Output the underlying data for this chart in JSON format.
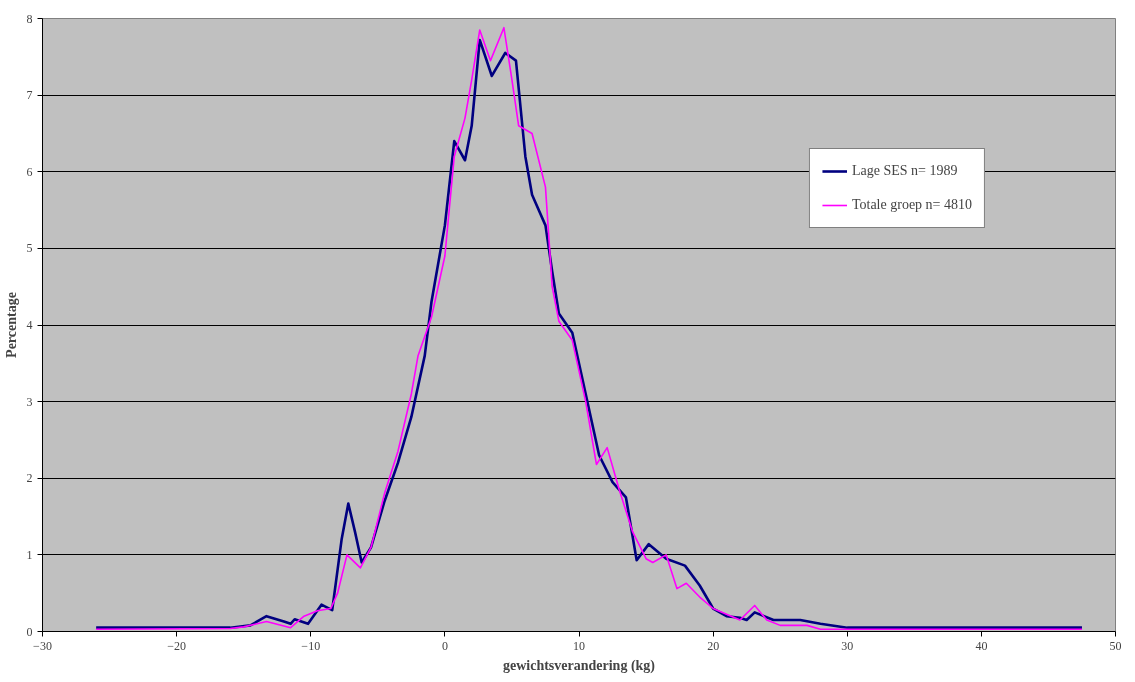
{
  "chart_data": {
    "type": "line",
    "xlabel": "gewichtsverandering (kg)",
    "ylabel": "Percentage",
    "xlim": [
      -30,
      50
    ],
    "xticks": [
      -30,
      -20,
      -10,
      0,
      10,
      20,
      30,
      40,
      50
    ],
    "ylim": [
      0,
      8
    ],
    "yticks": [
      0,
      1,
      2,
      3,
      4,
      5,
      6,
      7,
      8
    ],
    "grid": "y",
    "legend": "top right",
    "marker": "none",
    "line_style": "solid",
    "series": [
      {
        "name": "Lage SES n= 1989",
        "color": "#000080",
        "x": [
          -26,
          -16,
          -14.5,
          -13.3,
          -12,
          -11.5,
          -11.2,
          -10.2,
          -9.2,
          -8.4,
          -7.7,
          -7.2,
          -6.7,
          -6.2,
          -5.5,
          -4.5,
          -3.5,
          -2.5,
          -1.5,
          -1,
          0,
          0.7,
          1.5,
          2,
          2.6,
          3.5,
          4.5,
          5.3,
          6,
          6.5,
          7.5,
          8,
          8.5,
          9.5,
          10.5,
          11.5,
          12.5,
          13.5,
          14.3,
          15.2,
          16.5,
          17.9,
          19,
          20,
          21,
          22,
          22.5,
          23.1,
          24.5,
          26.5,
          28,
          30,
          47.5
        ],
        "values": [
          0.05,
          0.05,
          0.08,
          0.2,
          0.13,
          0.1,
          0.16,
          0.1,
          0.35,
          0.28,
          1.2,
          1.67,
          1.3,
          0.9,
          1.1,
          1.7,
          2.2,
          2.8,
          3.6,
          4.3,
          5.3,
          6.4,
          6.15,
          6.6,
          7.72,
          7.25,
          7.55,
          7.45,
          6.2,
          5.7,
          5.3,
          4.7,
          4.15,
          3.9,
          3.1,
          2.3,
          1.95,
          1.75,
          0.93,
          1.14,
          0.95,
          0.86,
          0.6,
          0.3,
          0.2,
          0.18,
          0.15,
          0.25,
          0.15,
          0.15,
          0.1,
          0.05,
          0.05
        ]
      },
      {
        "name": "Totale groep n= 4810",
        "color": "#ff00ff",
        "x": [
          -26,
          -16,
          -15,
          -13.3,
          -11.5,
          -10.5,
          -9.5,
          -8.5,
          -8,
          -7.3,
          -6.3,
          -5.5,
          -4.5,
          -3.5,
          -2.5,
          -2,
          -1,
          0,
          0.7,
          1.5,
          2,
          2.6,
          3.4,
          4.4,
          5,
          5.5,
          6.5,
          7.5,
          8,
          8.5,
          9.5,
          10.5,
          11.3,
          12.1,
          13,
          14,
          15,
          15.5,
          16.5,
          17.3,
          18,
          19,
          20,
          22,
          23.1,
          24,
          25,
          27,
          28,
          47.5
        ],
        "values": [
          0.03,
          0.04,
          0.06,
          0.13,
          0.05,
          0.2,
          0.27,
          0.3,
          0.5,
          1.0,
          0.83,
          1.1,
          1.8,
          2.35,
          3.1,
          3.6,
          4.1,
          4.9,
          6.2,
          6.7,
          7.2,
          7.85,
          7.45,
          7.88,
          7.2,
          6.6,
          6.5,
          5.8,
          4.5,
          4.05,
          3.8,
          3.0,
          2.18,
          2.4,
          1.85,
          1.3,
          0.95,
          0.9,
          1.0,
          0.56,
          0.63,
          0.45,
          0.3,
          0.15,
          0.34,
          0.15,
          0.08,
          0.08,
          0.03,
          0.03
        ]
      }
    ]
  }
}
